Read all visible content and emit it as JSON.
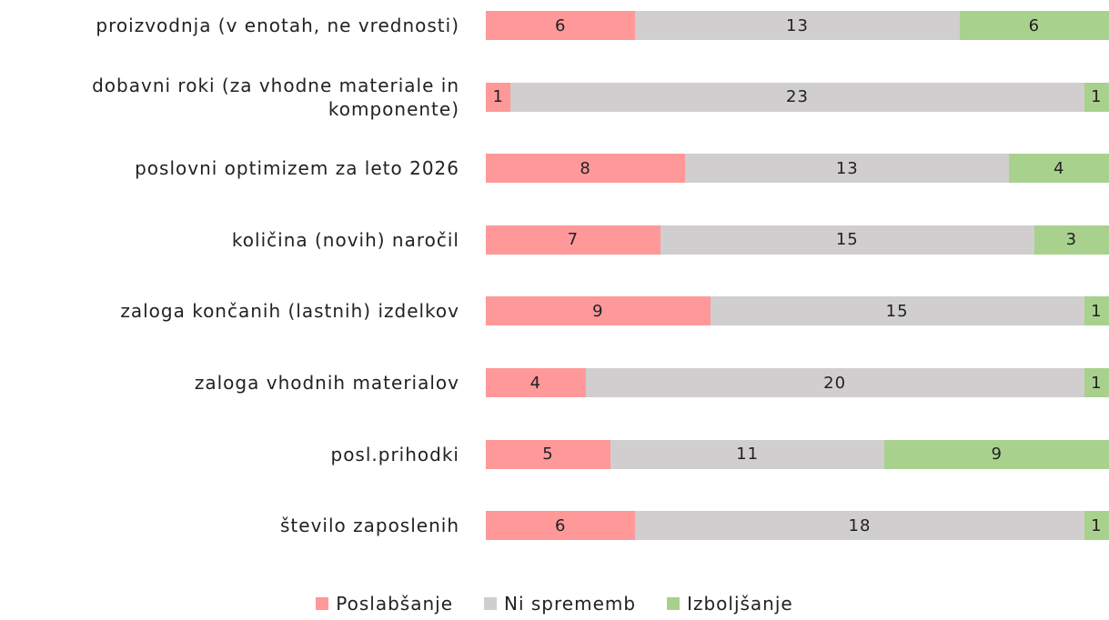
{
  "chart_data": {
    "type": "stacked-barh",
    "categories": [
      "proizvodnja (v enotah, ne vrednosti)",
      "dobavni roki (za vhodne materiale in komponente)",
      "poslovni optimizem za leto 2026",
      "količina (novih) naročil",
      "zaloga končanih (lastnih) izdelkov",
      "zaloga vhodnih materialov",
      "posl.prihodki",
      "število zaposlenih"
    ],
    "series": [
      {
        "name": "Poslabšanje",
        "color": "#ff9999",
        "values": [
          6,
          1,
          8,
          7,
          9,
          4,
          5,
          6
        ]
      },
      {
        "name": "Ni sprememb",
        "color": "#d0cece",
        "values": [
          13,
          23,
          13,
          15,
          15,
          20,
          11,
          18
        ]
      },
      {
        "name": "Izboljšanje",
        "color": "#a9d18e",
        "values": [
          6,
          1,
          4,
          3,
          1,
          1,
          9,
          1
        ]
      }
    ],
    "xlim": [
      0,
      25
    ],
    "legend": "bottom"
  }
}
